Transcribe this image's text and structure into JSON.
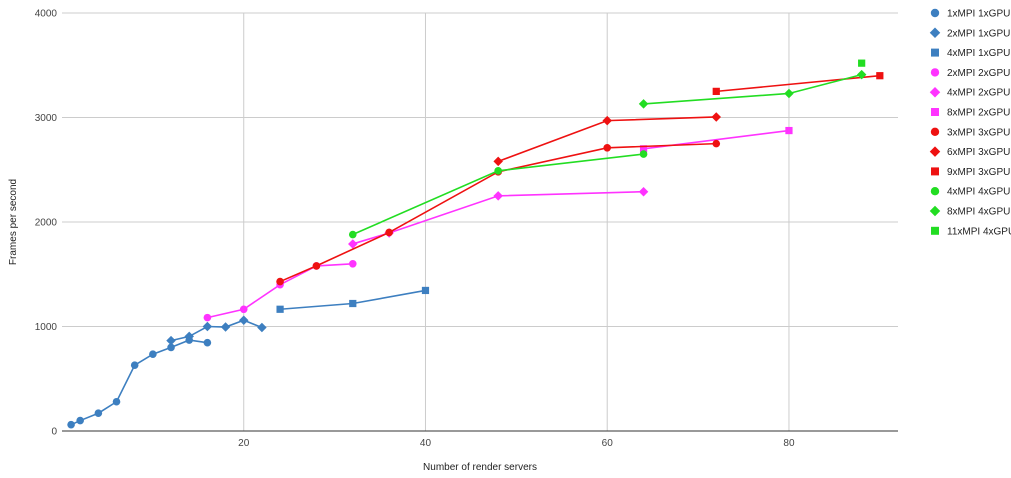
{
  "chart_data": {
    "type": "line",
    "title": "",
    "xlabel": "Number of render servers",
    "ylabel": "Frames per second",
    "xlim": [
      0,
      92
    ],
    "ylim": [
      0,
      4000
    ],
    "xticks": [
      20,
      40,
      60,
      80
    ],
    "yticks": [
      0,
      1000,
      2000,
      3000,
      4000
    ],
    "grid": true,
    "legend_position": "right",
    "series": [
      {
        "name": "1xMPI 1xGPU",
        "color": "#3d7fc0",
        "marker": "circle",
        "points": [
          [
            1,
            60
          ],
          [
            2,
            100
          ],
          [
            4,
            170
          ],
          [
            6,
            280
          ],
          [
            8,
            630
          ],
          [
            10,
            735
          ],
          [
            12,
            800
          ],
          [
            14,
            870
          ],
          [
            16,
            845
          ]
        ]
      },
      {
        "name": "2xMPI 1xGPU",
        "color": "#3d7fc0",
        "marker": "diamond",
        "points": [
          [
            12,
            865
          ],
          [
            14,
            905
          ],
          [
            16,
            1000
          ],
          [
            18,
            995
          ],
          [
            20,
            1060
          ],
          [
            22,
            990
          ]
        ]
      },
      {
        "name": "4xMPI 1xGPU",
        "color": "#3d7fc0",
        "marker": "square",
        "points": [
          [
            24,
            1165
          ],
          [
            32,
            1220
          ],
          [
            40,
            1345
          ]
        ]
      },
      {
        "name": "2xMPI 2xGPU",
        "color": "#ff33ff",
        "marker": "circle",
        "points": [
          [
            16,
            1085
          ],
          [
            20,
            1165
          ],
          [
            24,
            1400
          ],
          [
            28,
            1580
          ],
          [
            32,
            1600
          ]
        ]
      },
      {
        "name": "4xMPI 2xGPU",
        "color": "#ff33ff",
        "marker": "diamond",
        "points": [
          [
            32,
            1790
          ],
          [
            36,
            1895
          ],
          [
            48,
            2250
          ],
          [
            64,
            2290
          ]
        ]
      },
      {
        "name": "8xMPI 2xGPU",
        "color": "#ff33ff",
        "marker": "square",
        "points": [
          [
            64,
            2700
          ],
          [
            80,
            2875
          ]
        ]
      },
      {
        "name": "3xMPI 3xGPU",
        "color": "#ee1111",
        "marker": "circle",
        "points": [
          [
            24,
            1430
          ],
          [
            28,
            1580
          ],
          [
            36,
            1900
          ],
          [
            48,
            2480
          ],
          [
            60,
            2710
          ],
          [
            72,
            2750
          ]
        ]
      },
      {
        "name": "6xMPI 3xGPU",
        "color": "#ee1111",
        "marker": "diamond",
        "points": [
          [
            48,
            2580
          ],
          [
            60,
            2970
          ],
          [
            72,
            3005
          ]
        ]
      },
      {
        "name": "9xMPI 3xGPU",
        "color": "#ee1111",
        "marker": "square",
        "points": [
          [
            72,
            3250
          ],
          [
            90,
            3400
          ]
        ]
      },
      {
        "name": "4xMPI 4xGPU",
        "color": "#22dd22",
        "marker": "circle",
        "points": [
          [
            32,
            1880
          ],
          [
            48,
            2490
          ],
          [
            64,
            2650
          ]
        ]
      },
      {
        "name": "8xMPI 4xGPU",
        "color": "#22dd22",
        "marker": "diamond",
        "points": [
          [
            64,
            3130
          ],
          [
            80,
            3230
          ],
          [
            88,
            3410
          ]
        ]
      },
      {
        "name": "11xMPI 4xGPU",
        "color": "#22dd22",
        "marker": "square",
        "points": [
          [
            88,
            3520
          ]
        ]
      }
    ]
  }
}
